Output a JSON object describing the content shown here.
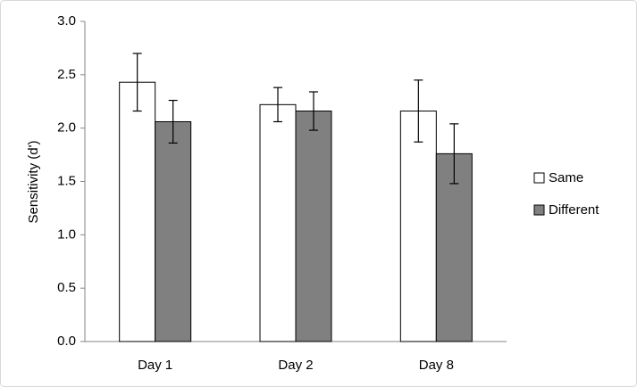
{
  "chart_data": {
    "type": "bar",
    "y_label": "Sensitivity (d')",
    "categories": [
      "Day 1",
      "Day 2",
      "Day 8"
    ],
    "series": [
      {
        "name": "Same",
        "color": "#ffffff",
        "values": [
          2.43,
          2.22,
          2.16
        ],
        "errors": [
          0.27,
          0.16,
          0.29
        ]
      },
      {
        "name": "Different",
        "color": "#808080",
        "values": [
          2.06,
          2.16,
          1.76
        ],
        "errors": [
          0.2,
          0.18,
          0.28
        ]
      }
    ],
    "ylim": [
      0,
      3
    ],
    "yticks": [
      {
        "value": 0,
        "label": "0.0"
      },
      0.5,
      {
        "value": 1,
        "label": "1.0"
      },
      1.5,
      {
        "value": 2,
        "label": "2.0"
      },
      2.5,
      {
        "value": 3,
        "label": "3.0"
      }
    ],
    "grid": false,
    "legend": "right"
  }
}
